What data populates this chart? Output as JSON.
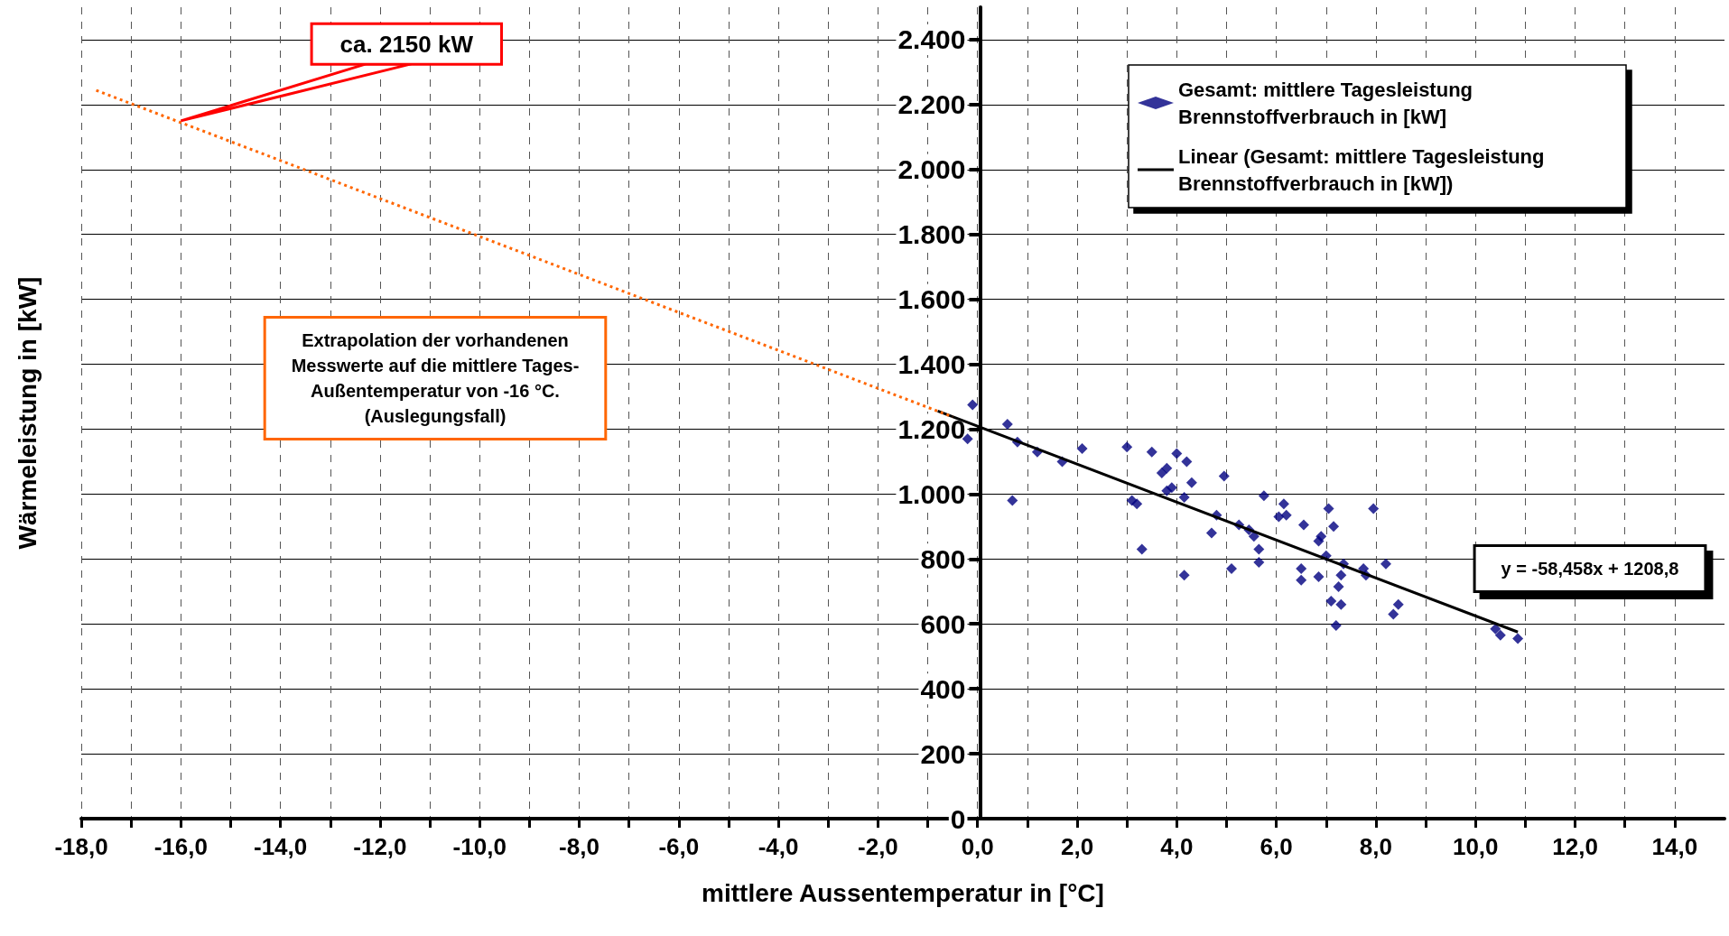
{
  "chart_data": {
    "type": "scatter",
    "xlabel": "mittlere Aussentemperatur in [°C]",
    "ylabel": "Wärmeleistung in [kW]",
    "xlim": [
      -18,
      15
    ],
    "xticks": [
      {
        "value": -18,
        "label": "-18,0"
      },
      {
        "value": -17,
        "label": null
      },
      {
        "value": -16,
        "label": "-16,0"
      },
      {
        "value": -15,
        "label": null
      },
      {
        "value": -14,
        "label": "-14,0"
      },
      {
        "value": -13,
        "label": null
      },
      {
        "value": -12,
        "label": "-12,0"
      },
      {
        "value": -11,
        "label": null
      },
      {
        "value": -10,
        "label": "-10,0"
      },
      {
        "value": -9,
        "label": null
      },
      {
        "value": -8,
        "label": "-8,0"
      },
      {
        "value": -7,
        "label": null
      },
      {
        "value": -6,
        "label": "-6,0"
      },
      {
        "value": -5,
        "label": null
      },
      {
        "value": -4,
        "label": "-4,0"
      },
      {
        "value": -3,
        "label": null
      },
      {
        "value": -2,
        "label": "-2,0"
      },
      {
        "value": -1,
        "label": null
      },
      {
        "value": 0,
        "label": "0,0"
      },
      {
        "value": 1,
        "label": null
      },
      {
        "value": 2,
        "label": "2,0"
      },
      {
        "value": 3,
        "label": null
      },
      {
        "value": 4,
        "label": "4,0"
      },
      {
        "value": 5,
        "label": null
      },
      {
        "value": 6,
        "label": "6,0"
      },
      {
        "value": 7,
        "label": null
      },
      {
        "value": 8,
        "label": "8,0"
      },
      {
        "value": 9,
        "label": null
      },
      {
        "value": 10,
        "label": "10,0"
      },
      {
        "value": 11,
        "label": null
      },
      {
        "value": 12,
        "label": "12,0"
      },
      {
        "value": 13,
        "label": null
      },
      {
        "value": 14,
        "label": "14,0"
      }
    ],
    "ylim": [
      0,
      2500
    ],
    "yticks": [
      0,
      200,
      400,
      600,
      800,
      {
        "value": 1000,
        "label": "1.000"
      },
      {
        "value": 1200,
        "label": "1.200"
      },
      {
        "value": 1400,
        "label": "1.400"
      },
      {
        "value": 1600,
        "label": "1.600"
      },
      {
        "value": 1800,
        "label": "1.800"
      },
      {
        "value": 2000,
        "label": "2.000"
      },
      {
        "value": 2200,
        "label": "2.200"
      },
      {
        "value": 2400,
        "label": "2.400"
      }
    ],
    "grid": true,
    "legend": "top right",
    "marker": "diamond",
    "series": [
      {
        "name": "Gesamt: mittlere Tagesleistung Brennstoffverbrauch in [kW]",
        "color": "#000080",
        "x": [
          -0.2,
          -0.1,
          0.6,
          0.8,
          0.7,
          1.2,
          1.7,
          2.1,
          3.0,
          3.1,
          3.2,
          3.3,
          3.5,
          3.7,
          3.8,
          3.8,
          3.9,
          4.0,
          4.2,
          4.15,
          4.15,
          4.3,
          4.7,
          4.8,
          4.95,
          5.1,
          5.25,
          5.45,
          5.55,
          5.65,
          5.65,
          5.75,
          6.05,
          6.2,
          6.15,
          6.55,
          6.5,
          6.5,
          6.85,
          6.85,
          6.9,
          7.05,
          7.15,
          7.0,
          7.1,
          7.25,
          7.2,
          7.3,
          7.3,
          7.35,
          7.75,
          7.8,
          7.95,
          8.2,
          8.35,
          8.45,
          10.4,
          10.5,
          10.85
        ],
        "values": [
          1170,
          1275,
          1215,
          1160,
          980,
          1130,
          1100,
          1140,
          1145,
          980,
          970,
          830,
          1130,
          1065,
          1080,
          1010,
          1020,
          1125,
          1100,
          990,
          750,
          1035,
          880,
          935,
          1055,
          770,
          905,
          890,
          870,
          830,
          790,
          995,
          930,
          935,
          970,
          905,
          735,
          770,
          745,
          855,
          870,
          955,
          900,
          810,
          670,
          715,
          595,
          660,
          750,
          785,
          770,
          750,
          955,
          785,
          630,
          660,
          585,
          565,
          555
        ]
      },
      {
        "name": "Linear (Gesamt: mittlere Tagesleistung Brennstoffverbrauch in [kW])",
        "color": "#000000",
        "type": "line",
        "marker": "none",
        "line_style": "solid",
        "x": [
          -0.8,
          10.85
        ],
        "values": [
          1256,
          575
        ]
      },
      {
        "color": "#ff6600",
        "type": "line",
        "marker": "none",
        "line_style": "dotted",
        "x": [
          -17.7,
          -0.5
        ],
        "values": [
          2244,
          1238
        ]
      }
    ],
    "annotations": [
      {
        "text": "ca. 2150 kW",
        "x": -16,
        "y": 2150
      },
      "Extrapolation der vorhandenen\nMesswerte auf die mittlere Tages-\nAußentemperatur von -16 °C.\n(Auslegungsfall)",
      "y = -58,458x + 1208,8"
    ]
  }
}
